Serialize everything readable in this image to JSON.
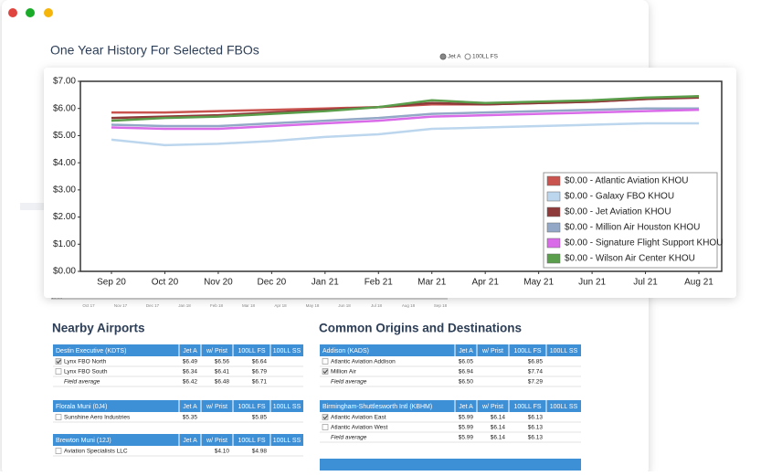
{
  "header": {
    "title": "One Year History For Selected FBOs",
    "radio": [
      {
        "label": "Jet A",
        "selected": true
      },
      {
        "label": "100LL FS",
        "selected": false
      }
    ]
  },
  "chart_data": {
    "type": "line",
    "categories": [
      "Sep 20",
      "Oct 20",
      "Nov 20",
      "Dec 20",
      "Jan 21",
      "Feb 21",
      "Mar 21",
      "Apr 21",
      "May 21",
      "Jun 21",
      "Jul 21",
      "Aug 21"
    ],
    "series": [
      {
        "name": "$0.00 - Atlantic Aviation KHOU",
        "color": "#c9534f",
        "values": [
          5.85,
          5.85,
          5.9,
          5.95,
          6.0,
          6.05,
          6.15,
          6.15,
          6.2,
          6.25,
          6.35,
          6.45
        ]
      },
      {
        "name": "$0.00 - Galaxy FBO KHOU",
        "color": "#bcd6ee",
        "values": [
          4.85,
          4.65,
          4.7,
          4.8,
          4.95,
          5.05,
          5.25,
          5.3,
          5.35,
          5.4,
          5.45,
          5.45
        ]
      },
      {
        "name": "$0.00 - Jet Aviation KHOU",
        "color": "#8e3a3a",
        "values": [
          5.65,
          5.7,
          5.75,
          5.85,
          5.95,
          6.05,
          6.2,
          6.15,
          6.2,
          6.25,
          6.35,
          6.4
        ]
      },
      {
        "name": "$0.00 - Million Air Houston KHOU",
        "color": "#93a8c6",
        "values": [
          5.4,
          5.35,
          5.35,
          5.45,
          5.55,
          5.65,
          5.8,
          5.85,
          5.9,
          5.95,
          6.0,
          6.0
        ]
      },
      {
        "name": "$0.00 - Signature Flight Support KHOU",
        "color": "#d96be8",
        "values": [
          5.3,
          5.25,
          5.25,
          5.35,
          5.45,
          5.55,
          5.7,
          5.75,
          5.8,
          5.85,
          5.9,
          5.95
        ]
      },
      {
        "name": "$0.00 - Wilson Air Center KHOU",
        "color": "#5a9e4b",
        "values": [
          5.55,
          5.65,
          5.7,
          5.8,
          5.9,
          6.05,
          6.3,
          6.2,
          6.25,
          6.3,
          6.4,
          6.45
        ]
      }
    ],
    "ylim": [
      0,
      7
    ],
    "yticks": [
      {
        "value": 0,
        "label": "$0.00"
      },
      {
        "value": 1,
        "label": "$1.00"
      },
      {
        "value": 2,
        "label": "$2.00"
      },
      {
        "value": 3,
        "label": "$3.00"
      },
      {
        "value": 4,
        "label": "$4.00"
      },
      {
        "value": 5,
        "label": "$5.00"
      },
      {
        "value": 6,
        "label": "$6.00"
      },
      {
        "value": 7,
        "label": "$7.00"
      }
    ],
    "grid": false,
    "legend": "bottom-right"
  },
  "navigator": {
    "y_label": "$0.00",
    "ticks": [
      "Oct 17",
      "Nov 17",
      "Dec 17",
      "Jan 18",
      "Feb 18",
      "Mar 18",
      "Apr 18",
      "May 18",
      "Jun 18",
      "Jul 18",
      "Aug 18",
      "Sep 18"
    ]
  },
  "nearby": {
    "title": "Nearby Airports",
    "groups": [
      {
        "header": [
          "Destin Executive (KDTS)",
          "Jet A",
          "w/ Prist",
          "100LL FS",
          "100LL SS"
        ],
        "rows": [
          {
            "checked": true,
            "cells": [
              "Lynx FBO North",
              "$6.49",
              "$6.56",
              "$6.64",
              null
            ]
          },
          {
            "checked": false,
            "cells": [
              "Lynx FBO South",
              "$6.34",
              "$6.41",
              "$6.79",
              null
            ]
          },
          {
            "cells": [
              "Field average",
              "$6.42",
              "$6.48",
              "$6.71",
              null
            ]
          }
        ]
      },
      {
        "header": [
          "Florala Muni (0J4)",
          "Jet A",
          "w/ Prist",
          "100LL FS",
          "100LL SS"
        ],
        "rows": [
          {
            "checked": false,
            "cells": [
              "Sunshine Aero Industries",
              "$5.35",
              null,
              "$5.85",
              null
            ]
          }
        ]
      },
      {
        "header": [
          "Brewton Muni (12J)",
          "Jet A",
          "w/ Prist",
          "100LL FS",
          "100LL SS"
        ],
        "rows": [
          {
            "checked": false,
            "cells": [
              "Aviation Specialists LLC",
              null,
              "$4.10",
              "$4.98",
              null
            ]
          }
        ]
      }
    ]
  },
  "common": {
    "title": "Common Origins and Destinations",
    "groups": [
      {
        "header": [
          "Addison (KADS)",
          "Jet A",
          "w/ Prist",
          "100LL FS",
          "100LL SS"
        ],
        "rows": [
          {
            "checked": false,
            "cells": [
              "Atlantic Aviation Addison",
              "$6.05",
              null,
              "$6.85",
              null
            ]
          },
          {
            "checked": true,
            "cells": [
              "Million Air",
              "$6.94",
              null,
              "$7.74",
              null
            ]
          },
          {
            "cells": [
              "Field average",
              "$6.50",
              null,
              "$7.29",
              null
            ]
          }
        ]
      },
      {
        "header": [
          "Birmingham-Shuttlesworth Intl (KBHM)",
          "Jet A",
          "w/ Prist",
          "100LL FS",
          "100LL SS"
        ],
        "rows": [
          {
            "checked": true,
            "cells": [
              "Atlantic Aviation East",
              "$5.99",
              "$6.14",
              "$6.13",
              null
            ]
          },
          {
            "checked": false,
            "cells": [
              "Atlantic Aviation West",
              "$5.99",
              "$6.14",
              "$6.13",
              null
            ]
          },
          {
            "cells": [
              "Field average",
              "$5.99",
              "$6.14",
              "$6.13",
              null
            ]
          }
        ]
      }
    ]
  }
}
